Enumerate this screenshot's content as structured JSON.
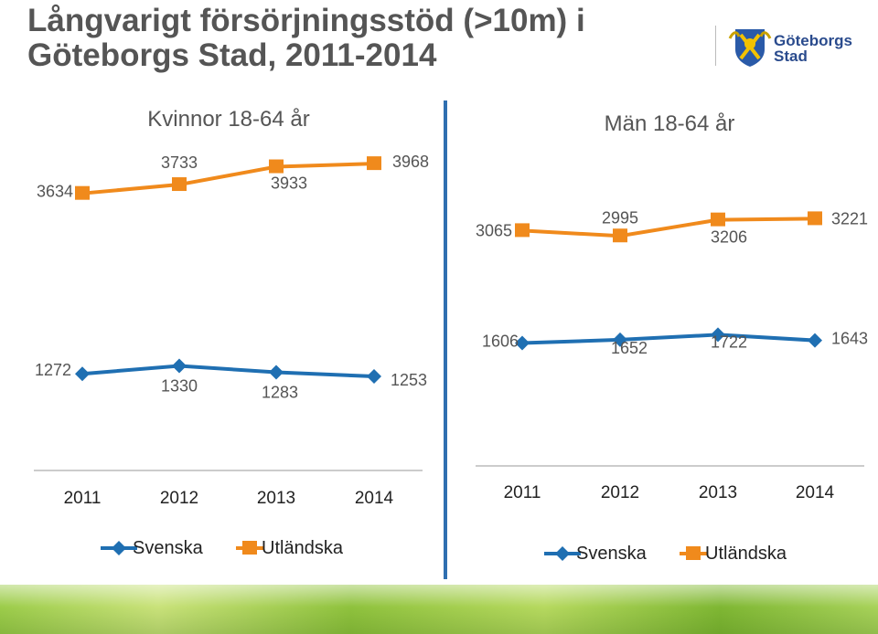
{
  "title_line1": "Långvarigt försörjningsstöd (>10m) i",
  "title_line2": "Göteborgs Stad, 2011-2014",
  "logo": {
    "line1": "Göteborgs",
    "line2": "Stad",
    "icon": "city-crest-icon"
  },
  "colors": {
    "svenska": "#1f6fb2",
    "utlandska": "#f08a1c",
    "divider": "#2f6fb0"
  },
  "chart_data": [
    {
      "type": "line",
      "title": "Kvinnor 18-64 år",
      "categories": [
        "2011",
        "2012",
        "2013",
        "2014"
      ],
      "series": [
        {
          "name": "Svenska",
          "values": [
            1272,
            1330,
            1283,
            1253
          ]
        },
        {
          "name": "Utländska",
          "values": [
            3634,
            3733,
            3933,
            3968
          ]
        }
      ],
      "legend": "bottom"
    },
    {
      "type": "line",
      "title": "Män 18-64 år",
      "categories": [
        "2011",
        "2012",
        "2013",
        "2014"
      ],
      "series": [
        {
          "name": "Svenska",
          "values": [
            1606,
            1652,
            1722,
            1643
          ]
        },
        {
          "name": "Utländska",
          "values": [
            3065,
            2995,
            3206,
            3221
          ]
        }
      ],
      "legend": "bottom"
    }
  ]
}
